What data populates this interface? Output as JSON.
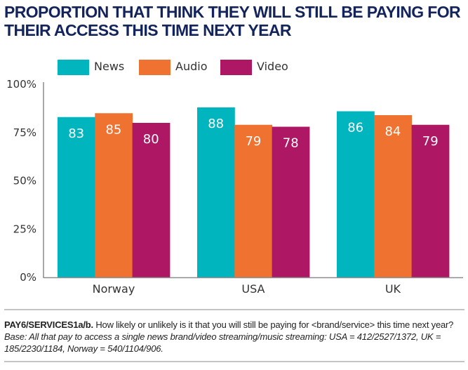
{
  "title": "PROPORTION THAT THINK THEY WILL STILL BE PAYING FOR THEIR ACCESS THIS TIME NEXT YEAR",
  "colors": {
    "title": "#13235b",
    "News": "#00b5bd",
    "Audio": "#f07230",
    "Video": "#ad1763",
    "axis": "#8c8c8c"
  },
  "chart_data": {
    "type": "bar",
    "title": "PROPORTION THAT THINK THEY WILL STILL BE PAYING FOR THEIR ACCESS THIS TIME NEXT YEAR",
    "categories": [
      "Norway",
      "USA",
      "UK"
    ],
    "series": [
      {
        "name": "News",
        "values": [
          83,
          88,
          86
        ]
      },
      {
        "name": "Audio",
        "values": [
          85,
          79,
          84
        ]
      },
      {
        "name": "Video",
        "values": [
          80,
          78,
          79
        ]
      }
    ],
    "xlabel": "",
    "ylabel": "",
    "ylim": [
      0,
      100
    ],
    "yticks": [
      "0%",
      "25%",
      "50%",
      "75%",
      "100%"
    ],
    "ytick_values": [
      0,
      25,
      50,
      75,
      100
    ],
    "grid": false,
    "legend": "top",
    "data_labels": true
  },
  "footnote": {
    "code": "PAY6/SERVICES1a/b.",
    "question": " How likely or unlikely is it that you will still be paying for <brand/service> this time next year? ",
    "base": "Base: All that pay to access a single news brand/video streaming/music streaming: USA = 412/2527/1372, UK = 185/2230/1184, Norway = 540/1104/906."
  }
}
